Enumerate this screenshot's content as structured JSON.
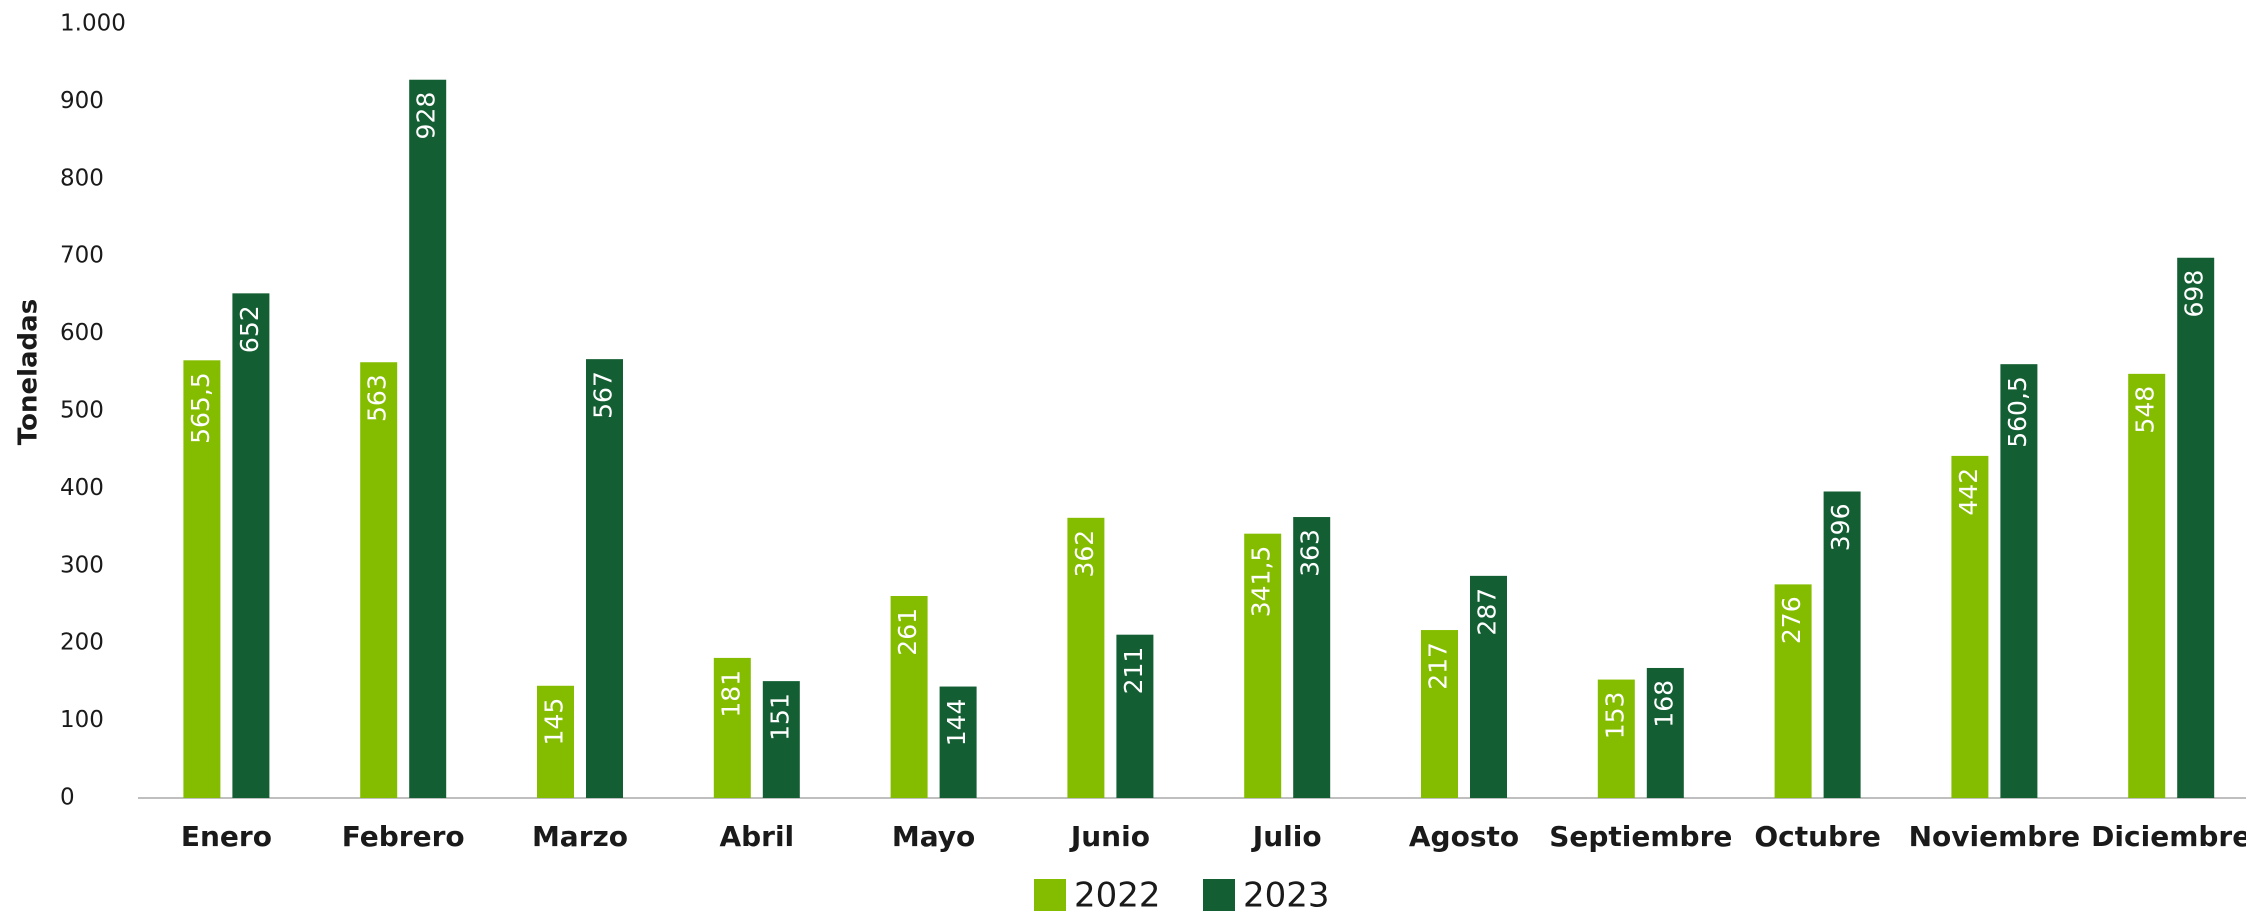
{
  "chart_data": {
    "type": "bar",
    "y_label": "Toneladas",
    "categories": [
      "Enero",
      "Febrero",
      "Marzo",
      "Abril",
      "Mayo",
      "Junio",
      "Julio",
      "Agosto",
      "Septiembre",
      "Octubre",
      "Noviembre",
      "Diciembre"
    ],
    "series": [
      {
        "name": "2022",
        "color": "#84bd00",
        "values": [
          565.5,
          563,
          145,
          181,
          261,
          362,
          341.5,
          217,
          153,
          276,
          442,
          548
        ],
        "value_labels": [
          "565,5",
          "563",
          "145",
          "181",
          "261",
          "362",
          "341,5",
          "217",
          "153",
          "276",
          "442",
          "548"
        ]
      },
      {
        "name": "2023",
        "color": "#135e32",
        "values": [
          652,
          928,
          567,
          151,
          144,
          211,
          363,
          287,
          168,
          396,
          560.5,
          698
        ],
        "value_labels": [
          "652",
          "928",
          "567",
          "151",
          "144",
          "211",
          "363",
          "287",
          "168",
          "396",
          "560,5",
          "698"
        ]
      }
    ],
    "ylim": [
      0,
      1000
    ],
    "yticks": [
      0,
      100,
      200,
      300,
      400,
      500,
      600,
      700,
      800,
      900,
      {
        "value": 1000,
        "label": "1.000"
      }
    ],
    "grid": false,
    "legend": "bottom"
  }
}
